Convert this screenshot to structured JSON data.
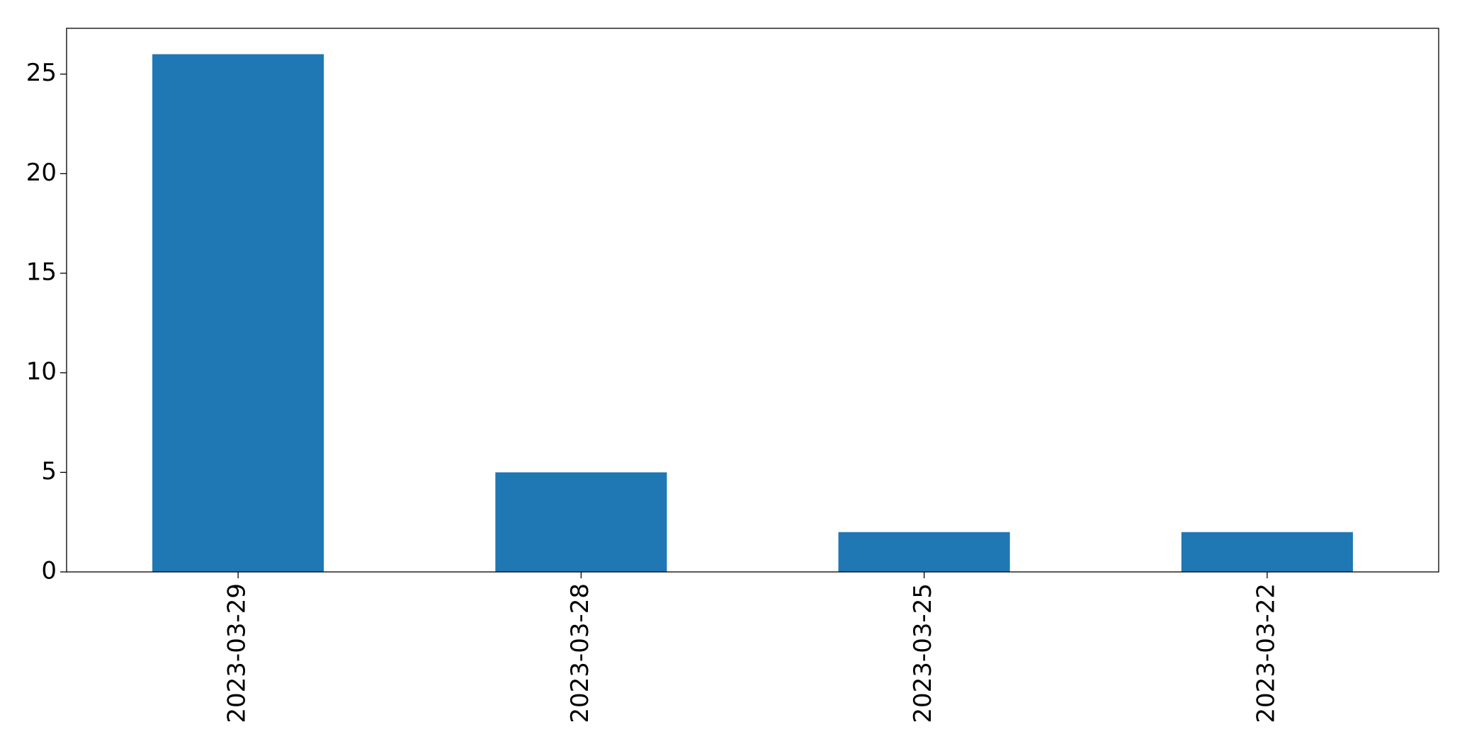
{
  "chart_data": {
    "type": "bar",
    "categories": [
      "2023-03-29",
      "2023-03-28",
      "2023-03-25",
      "2023-03-22"
    ],
    "values": [
      26,
      5,
      2,
      2
    ],
    "color": "#1f77b4",
    "ylim": [
      0,
      27.3
    ],
    "yticks": [
      0,
      5,
      10,
      15,
      20,
      25
    ],
    "grid": false
  }
}
